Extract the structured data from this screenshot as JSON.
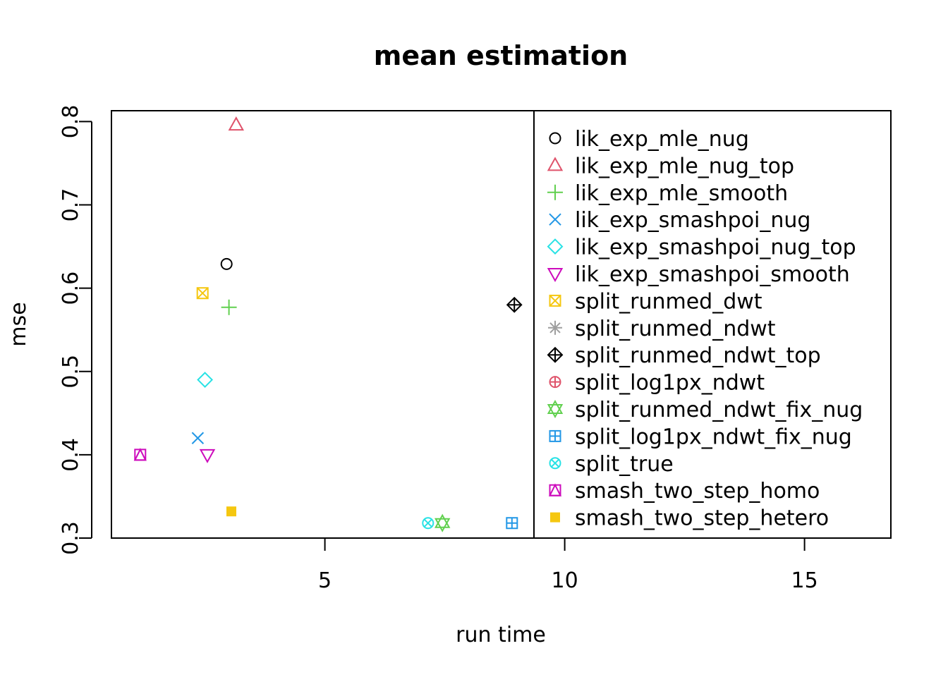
{
  "chart_data": {
    "type": "scatter",
    "title": "mean estimation",
    "xlabel": "run time",
    "ylabel": "mse",
    "xlim": [
      0.55,
      16.8
    ],
    "ylim": [
      0.3,
      0.813
    ],
    "xticks": [
      5,
      10,
      15
    ],
    "xtick_labels": [
      "5",
      "10",
      "15"
    ],
    "yticks": [
      0.3,
      0.4,
      0.5,
      0.6,
      0.7,
      0.8
    ],
    "ytick_labels": [
      "0.3",
      "0.4",
      "0.5",
      "0.6",
      "0.7",
      "0.8"
    ],
    "grid": false,
    "legend_position": "right, inside plot box",
    "series": [
      {
        "name": "lik_exp_mle_nug",
        "color": "#000000",
        "marker": "circle",
        "x": [
          2.95
        ],
        "y": [
          0.629
        ]
      },
      {
        "name": "lik_exp_mle_nug_top",
        "color": "#DF536B",
        "marker": "triangle-up",
        "x": [
          3.15
        ],
        "y": [
          0.796
        ]
      },
      {
        "name": "lik_exp_mle_smooth",
        "color": "#61D04F",
        "marker": "plus",
        "x": [
          3.0
        ],
        "y": [
          0.577
        ]
      },
      {
        "name": "lik_exp_smashpoi_nug",
        "color": "#2297E6",
        "marker": "cross",
        "x": [
          2.35
        ],
        "y": [
          0.42
        ]
      },
      {
        "name": "lik_exp_smashpoi_nug_top",
        "color": "#28E2E5",
        "marker": "diamond",
        "x": [
          2.5
        ],
        "y": [
          0.49
        ]
      },
      {
        "name": "lik_exp_smashpoi_smooth",
        "color": "#CD0BBC",
        "marker": "triangle-down",
        "x": [
          2.55
        ],
        "y": [
          0.4
        ]
      },
      {
        "name": "split_runmed_dwt",
        "color": "#F5C710",
        "marker": "square-x",
        "x": [
          2.45
        ],
        "y": [
          0.594
        ]
      },
      {
        "name": "split_runmed_ndwt",
        "color": "#9E9E9E",
        "marker": "asterisk",
        "x": [],
        "y": []
      },
      {
        "name": "split_runmed_ndwt_top",
        "color": "#000000",
        "marker": "diamond-plus",
        "x": [
          8.95
        ],
        "y": [
          0.58
        ]
      },
      {
        "name": "split_log1px_ndwt",
        "color": "#DF536B",
        "marker": "circle-plus",
        "x": [],
        "y": []
      },
      {
        "name": "split_runmed_ndwt_fix_nug",
        "color": "#61D04F",
        "marker": "star-of-david",
        "x": [
          7.45
        ],
        "y": [
          0.318
        ]
      },
      {
        "name": "split_log1px_ndwt_fix_nug",
        "color": "#2297E6",
        "marker": "square-plus",
        "x": [
          8.9
        ],
        "y": [
          0.318
        ]
      },
      {
        "name": "split_true",
        "color": "#28E2E5",
        "marker": "circle-x",
        "x": [
          7.15
        ],
        "y": [
          0.318
        ]
      },
      {
        "name": "smash_two_step_homo",
        "color": "#CD0BBC",
        "marker": "square-triangle",
        "x": [
          1.15
        ],
        "y": [
          0.4
        ]
      },
      {
        "name": "smash_two_step_hetero",
        "color": "#F5C710",
        "marker": "filled-square",
        "x": [
          3.05
        ],
        "y": [
          0.332
        ]
      }
    ]
  }
}
